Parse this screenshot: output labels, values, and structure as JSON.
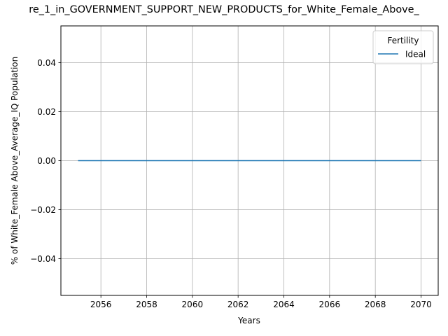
{
  "chart_data": {
    "type": "line",
    "title": "re_1_in_GOVERNMENT_SUPPORT_NEW_PRODUCTS_for_White_Female_Above_",
    "xlabel": "Years",
    "ylabel": "% of White_Female Above_Average_IQ Population",
    "xlim": [
      2054.25,
      2070.75
    ],
    "ylim": [
      -0.055,
      0.055
    ],
    "x_ticks": [
      2056,
      2058,
      2060,
      2062,
      2064,
      2066,
      2068,
      2070
    ],
    "x_tick_labels": [
      "2056",
      "2058",
      "2060",
      "2062",
      "2064",
      "2066",
      "2068",
      "2070"
    ],
    "y_ticks": [
      -0.04,
      -0.02,
      0.0,
      0.02,
      0.04
    ],
    "y_tick_labels": [
      "−0.04",
      "−0.02",
      "0.00",
      "0.02",
      "0.04"
    ],
    "grid": true,
    "legend": {
      "title": "Fertility",
      "position": "top-right"
    },
    "series": [
      {
        "name": "Ideal",
        "color": "#1f77b4",
        "x": [
          2055,
          2056,
          2057,
          2058,
          2059,
          2060,
          2061,
          2062,
          2063,
          2064,
          2065,
          2066,
          2067,
          2068,
          2069,
          2070
        ],
        "y": [
          0,
          0,
          0,
          0,
          0,
          0,
          0,
          0,
          0,
          0,
          0,
          0,
          0,
          0,
          0,
          0
        ]
      }
    ]
  }
}
